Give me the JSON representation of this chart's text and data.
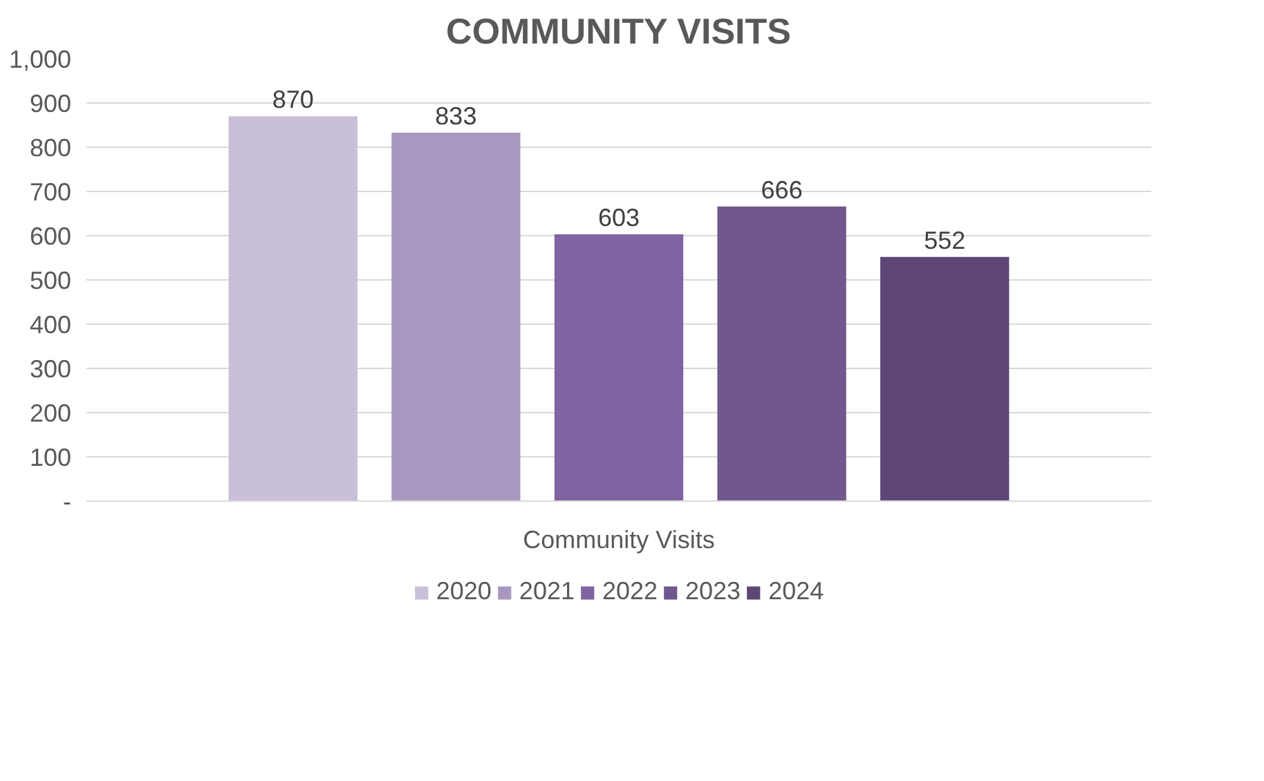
{
  "chart_data": {
    "type": "bar",
    "title": "COMMUNITY VISITS",
    "categories": [
      "Community Visits"
    ],
    "series": [
      {
        "name": "2020",
        "color": "#c9bfd8",
        "values": [
          870
        ]
      },
      {
        "name": "2021",
        "color": "#a898bf",
        "values": [
          833
        ]
      },
      {
        "name": "2022",
        "color": "#8064a2",
        "values": [
          603
        ]
      },
      {
        "name": "2023",
        "color": "#70588e",
        "values": [
          666
        ]
      },
      {
        "name": "2024",
        "color": "#5e4777",
        "values": [
          552
        ]
      }
    ],
    "ylim": [
      0,
      1000
    ],
    "yticks": [
      {
        "value": 0,
        "label": "-"
      },
      100,
      200,
      300,
      400,
      500,
      600,
      700,
      800,
      900,
      {
        "value": 1000,
        "label": "1,000"
      }
    ],
    "grid": "y",
    "legend": "bottom",
    "data_labels": true
  }
}
